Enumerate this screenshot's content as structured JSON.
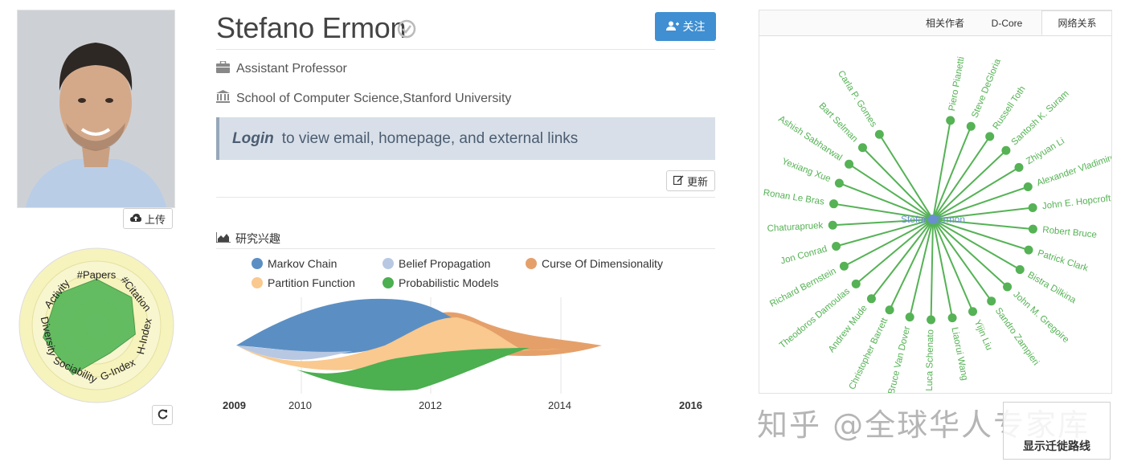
{
  "profile": {
    "name": "Stefano Ermon",
    "title": "Assistant Professor",
    "affiliation": "School of Computer Science,Stanford University",
    "login_strong": "Login",
    "login_text": "to view email, homepage, and external links",
    "upload_label": "上传",
    "follow_label": "关注",
    "update_label": "更新"
  },
  "radar": {
    "axes": [
      "#Papers",
      "#Citation",
      "H-Index",
      "G-Index",
      "Sociability",
      "Diversity",
      "Activity"
    ],
    "values": [
      0.72,
      0.7,
      0.62,
      0.48,
      0.85,
      0.85,
      0.78
    ],
    "fill_color": "#5cb85c",
    "ring_color": "#f5f2b8"
  },
  "interests": {
    "heading": "研究兴趣",
    "legend": [
      {
        "name": "Markov Chain",
        "color": "#5b8fc4"
      },
      {
        "name": "Belief Propagation",
        "color": "#b8c8e2"
      },
      {
        "name": "Curse Of Dimensionality",
        "color": "#e5a06a"
      },
      {
        "name": "Partition Function",
        "color": "#f9c98f"
      },
      {
        "name": "Probabilistic Models",
        "color": "#4caf50"
      }
    ],
    "x_start": "2009",
    "x_end": "2016",
    "x_ticks": [
      "2010",
      "2012",
      "2014"
    ]
  },
  "chart_data": {
    "type": "area",
    "x": [
      2009,
      2010,
      2011,
      2012,
      2013,
      2014,
      2015
    ],
    "series": [
      {
        "name": "Markov Chain",
        "values": [
          0,
          4,
          5,
          2,
          0.5,
          0,
          0
        ]
      },
      {
        "name": "Belief Propagation",
        "values": [
          0,
          2,
          1,
          0.3,
          0,
          0,
          0
        ]
      },
      {
        "name": "Partition Function",
        "values": [
          0,
          1,
          2.5,
          2.5,
          1,
          0.2,
          0
        ]
      },
      {
        "name": "Probabilistic Models",
        "values": [
          0,
          0.3,
          2,
          3,
          2,
          0.3,
          0
        ]
      },
      {
        "name": "Curse Of Dimensionality",
        "values": [
          0,
          0,
          0.5,
          2,
          1.2,
          0.3,
          0
        ]
      }
    ]
  },
  "network": {
    "tabs": [
      "相关作者",
      "D-Core",
      "网络关系"
    ],
    "active_tab": 2,
    "center": "Stefano Ermon",
    "nodes": [
      "Piero Pianetti",
      "Steve DeGloria",
      "Russell Toth",
      "Santosh K. Suram",
      "Zhiyuan Li",
      "Alexander Vladimirov",
      "John E. Hopcroft",
      "Robert Bruce",
      "Patrick Clark",
      "Bistra Dilkina",
      "John M. Gregoire",
      "Sandro Zampieri",
      "Yijin Liu",
      "Liaorui Wang",
      "Luca Schenato",
      "Bruce Van Dover",
      "Christopher Barrett",
      "Andrew Mude",
      "Theodoros Damoulas",
      "Richard Bernstein",
      "Jon Conrad",
      "Chaturapruek",
      "Ronan Le Bras",
      "Yexiang Xue",
      "Ashish Sabharwal",
      "Bart Selman",
      "Carla P. Gomes"
    ],
    "color": "#55b255"
  },
  "watermark": "知乎 @全球华人专家库",
  "migrate_label": "显示迁徙路线"
}
